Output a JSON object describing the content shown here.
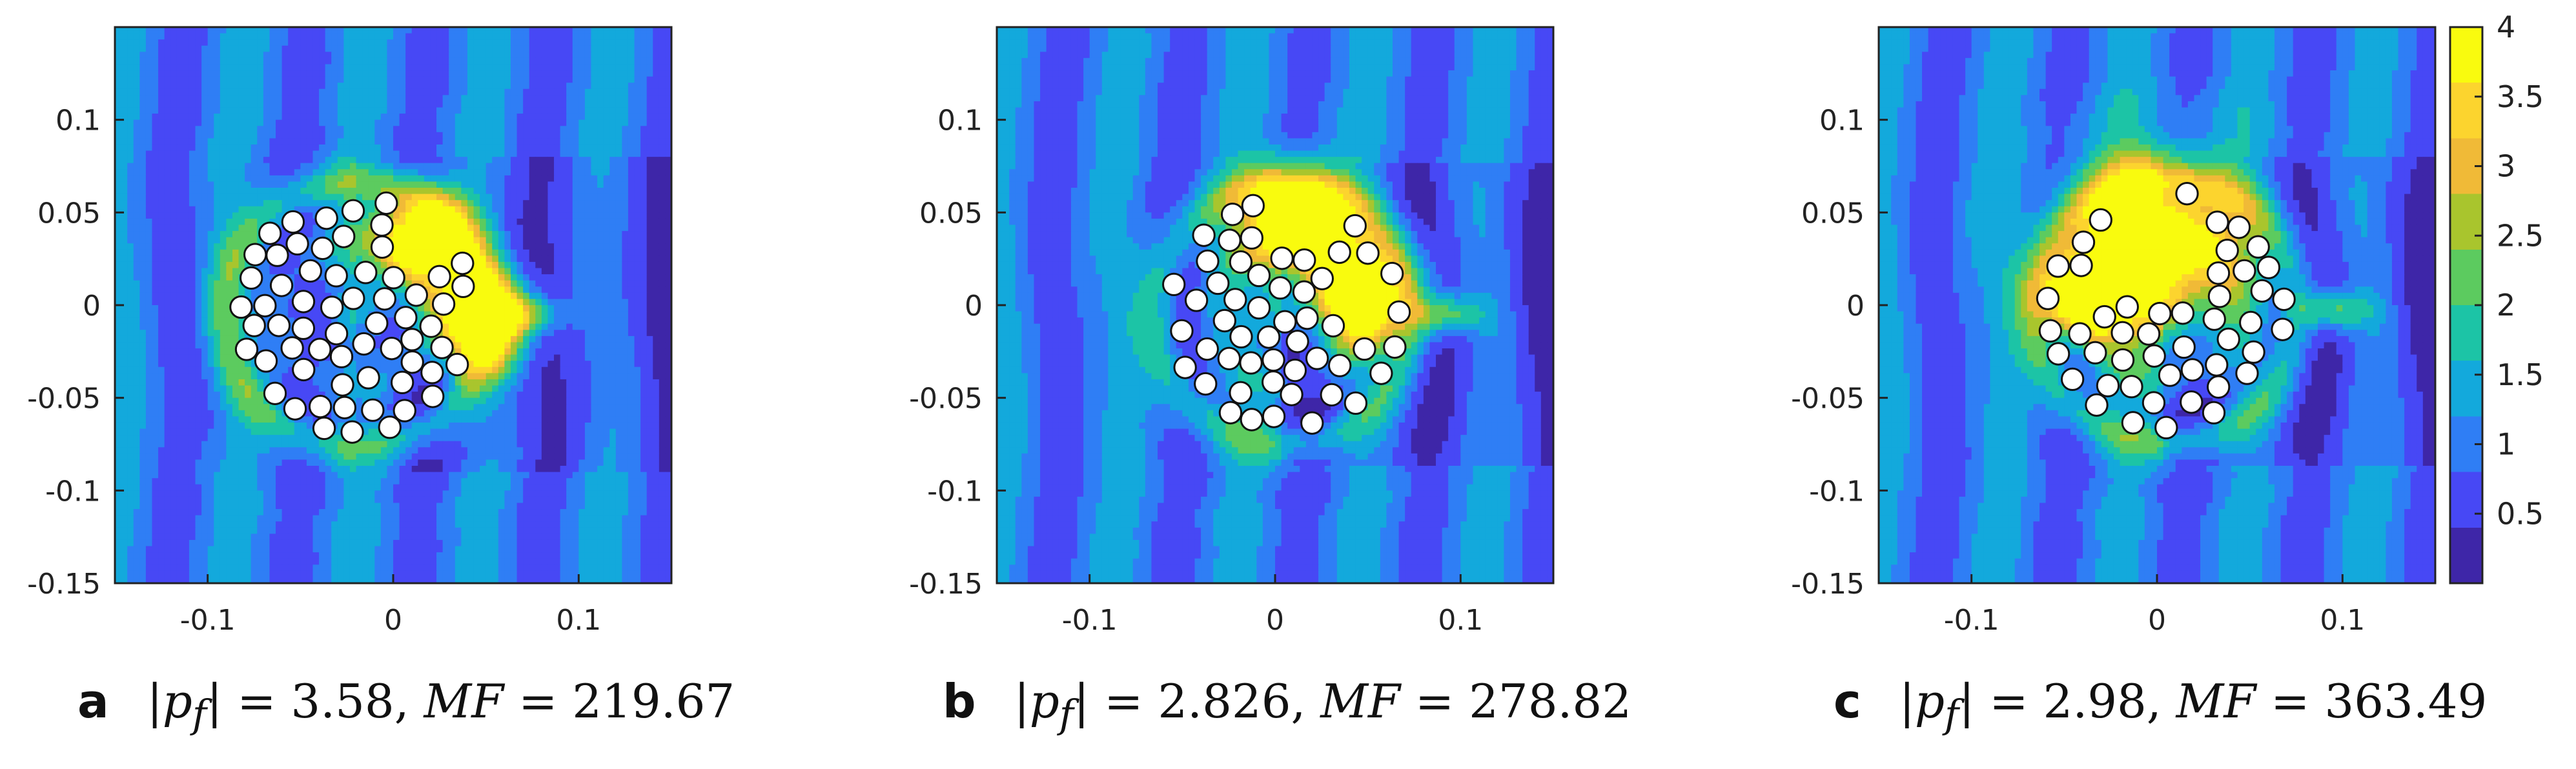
{
  "chart_data": [
    {
      "type": "heatmap",
      "panel": "a",
      "xlim": [
        -0.15,
        0.15
      ],
      "ylim": [
        -0.15,
        0.15
      ],
      "x_ticks": [
        -0.1,
        0,
        0.1
      ],
      "y_ticks": [
        0.1,
        0.05,
        0,
        -0.05,
        -0.1,
        -0.15
      ],
      "x_tick_labels": [
        "-0.1",
        "0",
        "0.1"
      ],
      "y_tick_labels": [
        "0.1",
        "0.05",
        "0",
        "-0.05",
        "-0.1",
        "-0.15"
      ],
      "caption": {
        "label": "a",
        "pf_text": "|p",
        "pf_sub": "f",
        "pf_value": "| = 3.58,",
        "mf_text": "MF",
        "mf_value": " = 219.67"
      },
      "scatterers": {
        "count": 66,
        "cluster_center": [
          -0.02,
          -0.005
        ],
        "cluster_radius": 0.07,
        "hot_regions": [
          [
            0.015,
            0.035,
            0.026
          ],
          [
            0.045,
            -0.008,
            0.026
          ]
        ]
      }
    },
    {
      "type": "heatmap",
      "panel": "b",
      "xlim": [
        -0.15,
        0.15
      ],
      "ylim": [
        -0.15,
        0.15
      ],
      "x_ticks": [
        -0.1,
        0,
        0.1
      ],
      "y_ticks": [
        0.1,
        0.05,
        0,
        -0.05,
        -0.1,
        -0.15
      ],
      "x_tick_labels": [
        "-0.1",
        "0",
        "0.1"
      ],
      "y_tick_labels": [
        "0.1",
        "0.05",
        "0",
        "-0.05",
        "-0.1",
        "-0.15"
      ],
      "caption": {
        "label": "b",
        "pf_text": "|p",
        "pf_sub": "f",
        "pf_value": "| = 2.826,",
        "mf_text": "MF",
        "mf_value": " = 278.82"
      },
      "scatterers": {
        "count": 52,
        "cluster_center": [
          0.005,
          -0.005
        ],
        "cluster_radius": 0.068,
        "hot_regions": [
          [
            0.012,
            0.045,
            0.028
          ],
          [
            0.045,
            0.005,
            0.028
          ]
        ]
      }
    },
    {
      "type": "heatmap",
      "panel": "c",
      "xlim": [
        -0.15,
        0.15
      ],
      "ylim": [
        -0.15,
        0.15
      ],
      "x_ticks": [
        -0.1,
        0,
        0.1
      ],
      "y_ticks": [
        0.1,
        0.05,
        0,
        -0.05,
        -0.1,
        -0.15
      ],
      "x_tick_labels": [
        "-0.1",
        "0",
        "0.1"
      ],
      "y_tick_labels": [
        "0.1",
        "0.05",
        "0",
        "-0.05",
        "-0.1",
        "-0.15"
      ],
      "caption": {
        "label": "c",
        "pf_text": "|p",
        "pf_sub": "f",
        "pf_value": "| = 2.98,",
        "mf_text": "MF",
        "mf_value": " = 363.49"
      },
      "scatterers": {
        "count": 48,
        "cluster_center": [
          0.005,
          -0.003
        ],
        "cluster_radius": 0.07,
        "hot_regions": [
          [
            0.0,
            0.03,
            0.045
          ],
          [
            -0.04,
            0.005,
            0.02
          ]
        ]
      }
    }
  ],
  "colorbar": {
    "range": [
      0,
      4
    ],
    "ticks": [
      4,
      3.5,
      3,
      2.5,
      2,
      1.5,
      1,
      0.5
    ],
    "tick_labels": [
      "4",
      "3.5",
      "3",
      "2.5",
      "2",
      "1.5",
      "1",
      "0.5"
    ],
    "colors": [
      "#3e26a8",
      "#4748f5",
      "#2f7ef5",
      "#13a9dc",
      "#1cc4a6",
      "#5ccb5f",
      "#a9c52d",
      "#f0ba37",
      "#fcd42e",
      "#f9fb0e"
    ]
  }
}
